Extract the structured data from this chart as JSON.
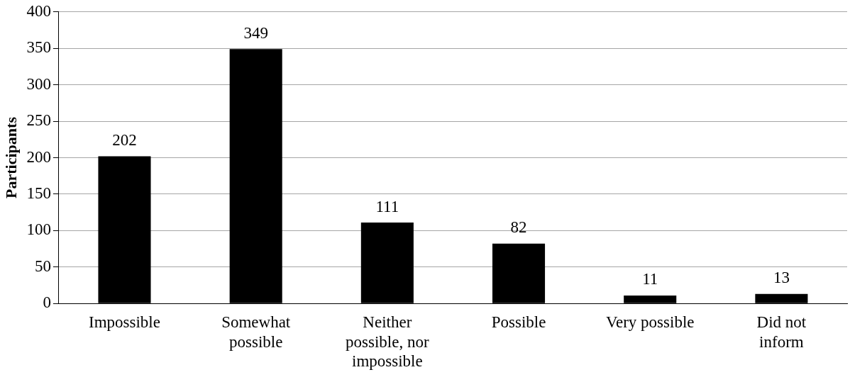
{
  "chart_data": {
    "type": "bar",
    "ylabel": "Participants",
    "categories": [
      "Impossible",
      "Somewhat possible",
      "Neither possible, nor impossible",
      "Possible",
      "Very possible",
      "Did not inform"
    ],
    "values": [
      202,
      349,
      111,
      82,
      11,
      13
    ],
    "color": "#000000",
    "ylim": [
      0,
      400
    ],
    "yticks": [
      0,
      50,
      100,
      150,
      200,
      250,
      300,
      350,
      400
    ],
    "grid": "y",
    "data_labels": true,
    "legend": false
  }
}
